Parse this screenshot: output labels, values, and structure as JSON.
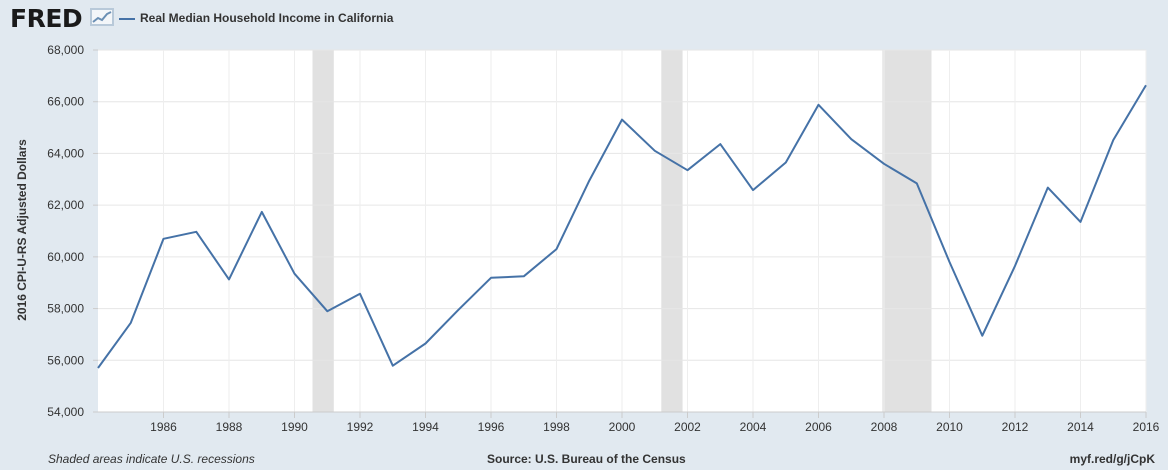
{
  "header": {
    "logo_text": "FRED",
    "logo_icon": "chart-trend-icon",
    "legend_label": "Real Median Household Income in California",
    "line_color": "#4572a7"
  },
  "footer": {
    "note": "Shaded areas indicate U.S. recessions",
    "source": "Source: U.S. Bureau of the Census",
    "link": "myf.red/g/jCpK"
  },
  "chart_data": {
    "type": "line",
    "title": "",
    "xlabel": "",
    "ylabel": "2016 CPI-U-RS Adjusted Dollars",
    "xlim": [
      1984,
      2016
    ],
    "ylim": [
      54000,
      68000
    ],
    "x_ticks": [
      1986,
      1988,
      1990,
      1992,
      1994,
      1996,
      1998,
      2000,
      2002,
      2004,
      2006,
      2008,
      2010,
      2012,
      2014,
      2016
    ],
    "y_ticks": [
      54000,
      56000,
      58000,
      60000,
      62000,
      64000,
      66000,
      68000
    ],
    "grid": true,
    "legend_position": "top-left",
    "recessions": [
      [
        1990.55,
        1991.2
      ],
      [
        2001.2,
        2001.85
      ],
      [
        2007.95,
        2009.45
      ]
    ],
    "recession_color": "#e1e1e1",
    "series": [
      {
        "name": "Real Median Household Income in California",
        "x": [
          1984,
          1985,
          1986,
          1987,
          1988,
          1989,
          1990,
          1991,
          1992,
          1993,
          1994,
          1995,
          1996,
          1997,
          1998,
          1999,
          2000,
          2001,
          2002,
          2003,
          2004,
          2005,
          2006,
          2007,
          2008,
          2009,
          2010,
          2011,
          2012,
          2013,
          2014,
          2015,
          2016
        ],
        "values": [
          55700,
          57450,
          60700,
          60970,
          59130,
          61740,
          59350,
          57900,
          58570,
          55790,
          56650,
          57950,
          59190,
          59250,
          60300,
          62950,
          65310,
          64100,
          63350,
          64360,
          62580,
          63650,
          65880,
          64550,
          63600,
          62840,
          59800,
          56950,
          59650,
          62680,
          61350,
          64520,
          66640
        ]
      }
    ]
  }
}
